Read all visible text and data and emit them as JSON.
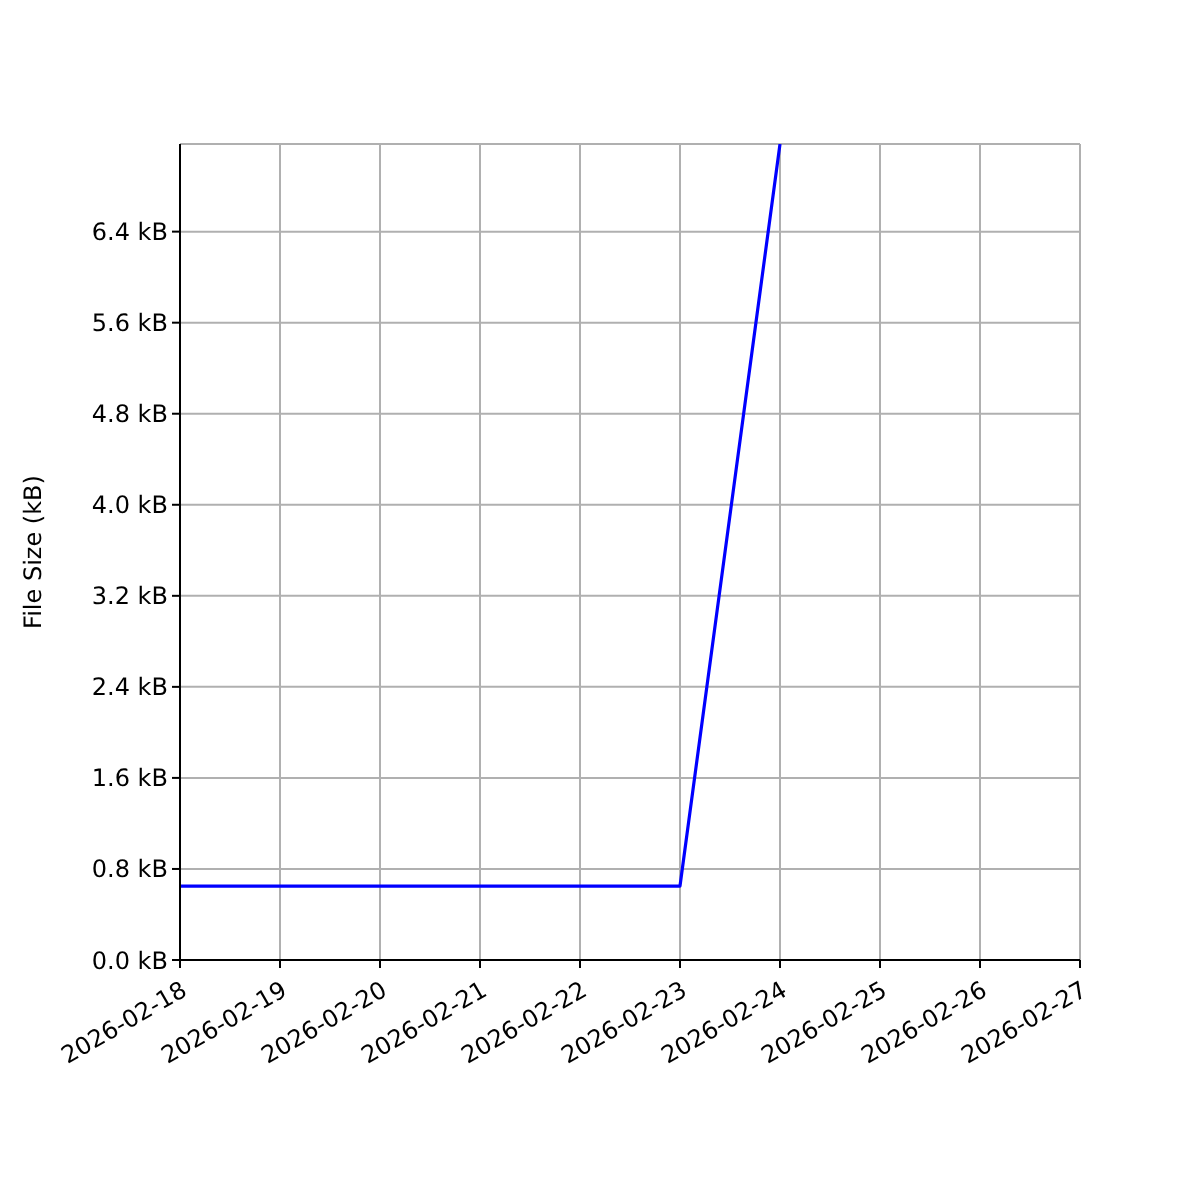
{
  "chart_data": {
    "type": "line",
    "ylabel": "File Size (kB)",
    "x": [
      "2026-02-18",
      "2026-02-19",
      "2026-02-20",
      "2026-02-21",
      "2026-02-22",
      "2026-02-23",
      "2026-02-24"
    ],
    "series": [
      {
        "color": "#0000ff",
        "values": [
          0.65,
          0.65,
          0.65,
          0.65,
          0.65,
          0.65,
          7.17
        ]
      }
    ],
    "xlim": [
      "2026-02-18",
      "2026-02-27"
    ],
    "xticks": [
      "2026-02-18",
      "2026-02-19",
      "2026-02-20",
      "2026-02-21",
      "2026-02-22",
      "2026-02-23",
      "2026-02-24",
      "2026-02-25",
      "2026-02-26",
      "2026-02-27"
    ],
    "ylim": [
      0,
      7.17
    ],
    "yticks": [
      {
        "value": 0,
        "label": "0.0 kB"
      },
      {
        "value": 0.8,
        "label": "0.8 kB"
      },
      {
        "value": 1.6,
        "label": "1.6 kB"
      },
      {
        "value": 2.4,
        "label": "2.4 kB"
      },
      {
        "value": 3.2,
        "label": "3.2 kB"
      },
      {
        "value": 4.0,
        "label": "4.0 kB"
      },
      {
        "value": 4.8,
        "label": "4.8 kB"
      },
      {
        "value": 5.6,
        "label": "5.6 kB"
      },
      {
        "value": 6.4,
        "label": "6.4 kB"
      }
    ],
    "grid": true,
    "legend": false,
    "marker": "none",
    "line_style": "solid"
  }
}
